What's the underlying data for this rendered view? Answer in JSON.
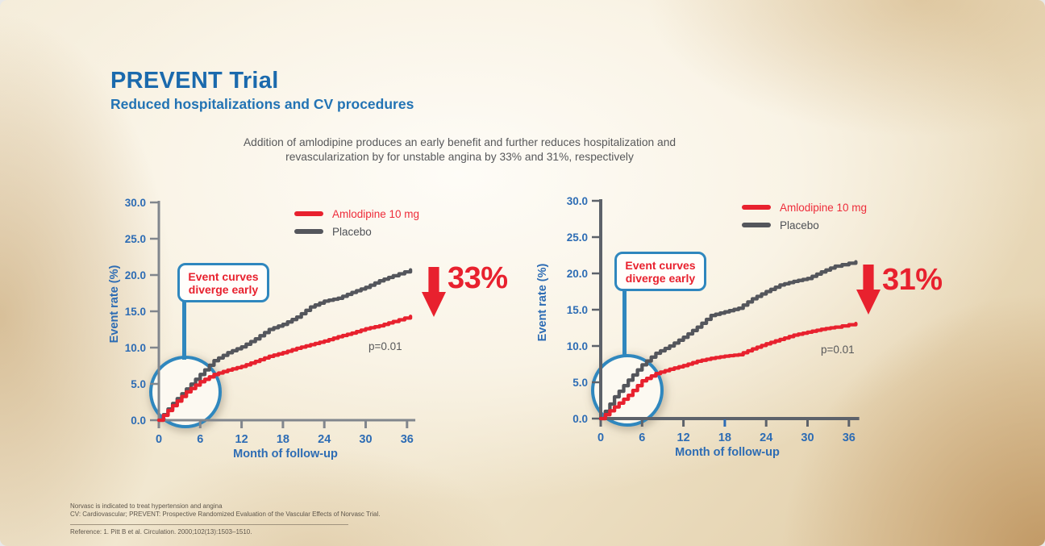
{
  "slide": {
    "title": "PREVENT Trial",
    "subtitle": "Reduced hospitalizations and CV procedures",
    "description_line1": "Addition of amlodipine produces an early benefit and further reduces hospitalization and",
    "description_line2": "revascularization by for unstable angina by 33% and 31%, respectively"
  },
  "colors": {
    "title_blue": "#1b6aad",
    "axis_label_blue": "#2d6cb4",
    "red": "#e8212e",
    "curve_gray": "#54565c",
    "callout_blue": "#2f87be",
    "text_gray": "#57585a",
    "footnote_brown": "#5e564b"
  },
  "chart_data": [
    {
      "type": "line",
      "xlabel": "Month of follow-up",
      "ylabel": "Event rate (%)",
      "x_ticks": [
        0,
        6,
        12,
        18,
        24,
        30,
        36
      ],
      "y_ticks": [
        "0.0",
        "5.0",
        "10.0",
        "15.0",
        "20.0",
        "25.0",
        "30.0"
      ],
      "xlim": [
        0,
        37.2
      ],
      "ylim": [
        0,
        30
      ],
      "axis_color": "#81868d",
      "axis_width": 3,
      "highlight_tick": null,
      "legend_position": "top-right",
      "legend": [
        {
          "label": "Amlodipine 10 mg",
          "color": "#e8212e"
        },
        {
          "label": "Placebo",
          "color": "#54565c"
        }
      ],
      "callout": "Event curves diverge early",
      "callout_icon": "magnifier-circle",
      "arrow_icon": "red-down-arrow",
      "reduction_label": "33%",
      "p_value": "p=0.01",
      "series": [
        {
          "name": "Placebo",
          "color": "#54565c",
          "points": [
            [
              0,
              0
            ],
            [
              2,
              2.3
            ],
            [
              4,
              4.3
            ],
            [
              6,
              6.3
            ],
            [
              8,
              8.2
            ],
            [
              10,
              9.3
            ],
            [
              12,
              10.1
            ],
            [
              14,
              11.2
            ],
            [
              16,
              12.5
            ],
            [
              18,
              13.2
            ],
            [
              20,
              14.2
            ],
            [
              22,
              15.6
            ],
            [
              24,
              16.4
            ],
            [
              26,
              16.8
            ],
            [
              28,
              17.6
            ],
            [
              30,
              18.3
            ],
            [
              32,
              19.2
            ],
            [
              34,
              19.9
            ],
            [
              36.5,
              20.7
            ]
          ]
        },
        {
          "name": "Amlodipine 10 mg",
          "color": "#e8212e",
          "points": [
            [
              0,
              0
            ],
            [
              2,
              2.0
            ],
            [
              4,
              3.9
            ],
            [
              6,
              5.3
            ],
            [
              8,
              6.3
            ],
            [
              10,
              6.9
            ],
            [
              12,
              7.4
            ],
            [
              14,
              8.1
            ],
            [
              16,
              8.8
            ],
            [
              18,
              9.3
            ],
            [
              20,
              9.9
            ],
            [
              22,
              10.4
            ],
            [
              24,
              10.9
            ],
            [
              26,
              11.5
            ],
            [
              28,
              12.0
            ],
            [
              30,
              12.6
            ],
            [
              32,
              13.0
            ],
            [
              34,
              13.6
            ],
            [
              36.5,
              14.3
            ]
          ]
        }
      ]
    },
    {
      "type": "line",
      "xlabel": "Month of follow-up",
      "ylabel": "Event rate (%)",
      "x_ticks": [
        0,
        6,
        12,
        18,
        24,
        30,
        36
      ],
      "y_ticks": [
        "0.0",
        "5.0",
        "10.0",
        "15.0",
        "20.0",
        "25.0",
        "30.0"
      ],
      "xlim": [
        0,
        37.5
      ],
      "ylim": [
        0,
        30
      ],
      "axis_color": "#5d626a",
      "axis_width": 4,
      "highlight_tick": 18,
      "legend_position": "top-right",
      "legend": [
        {
          "label": "Amlodipine  10 mg",
          "color": "#e8212e"
        },
        {
          "label": "Placebo",
          "color": "#54565c"
        }
      ],
      "callout": "Event curves diverge early",
      "callout_icon": "magnifier-circle",
      "arrow_icon": "red-down-arrow",
      "reduction_label": "31%",
      "p_value": "p=0.01",
      "series": [
        {
          "name": "Placebo",
          "color": "#54565c",
          "points": [
            [
              0,
              0
            ],
            [
              2,
              3.0
            ],
            [
              4,
              5.3
            ],
            [
              6,
              7.4
            ],
            [
              8,
              9.0
            ],
            [
              10,
              10.0
            ],
            [
              12,
              11.2
            ],
            [
              14,
              12.6
            ],
            [
              16,
              14.2
            ],
            [
              18,
              14.7
            ],
            [
              20,
              15.2
            ],
            [
              22,
              16.5
            ],
            [
              24,
              17.5
            ],
            [
              26,
              18.4
            ],
            [
              28,
              18.9
            ],
            [
              30,
              19.3
            ],
            [
              32,
              20.2
            ],
            [
              34,
              21.0
            ],
            [
              37,
              21.6
            ]
          ]
        },
        {
          "name": "Amlodipine 10 mg",
          "color": "#e8212e",
          "points": [
            [
              0,
              0
            ],
            [
              2,
              1.6
            ],
            [
              4,
              3.2
            ],
            [
              6,
              5.2
            ],
            [
              8,
              6.2
            ],
            [
              10,
              6.8
            ],
            [
              12,
              7.3
            ],
            [
              14,
              7.9
            ],
            [
              16,
              8.3
            ],
            [
              18,
              8.6
            ],
            [
              20,
              8.8
            ],
            [
              22,
              9.6
            ],
            [
              24,
              10.3
            ],
            [
              26,
              10.9
            ],
            [
              28,
              11.5
            ],
            [
              30,
              11.9
            ],
            [
              32,
              12.3
            ],
            [
              34,
              12.6
            ],
            [
              37,
              13.1
            ]
          ]
        }
      ]
    }
  ],
  "footnotes": {
    "line1": "Norvasc is indicated to treat hypertension and angina",
    "line2": "CV: Cardiovascular; PREVENT: Prospective Randomized Evaluation of the Vascular Effects of Norvasc Trial.",
    "reference": "Reference: 1. Pitt B et al. Circulation. 2000;102(13):1503–1510."
  }
}
